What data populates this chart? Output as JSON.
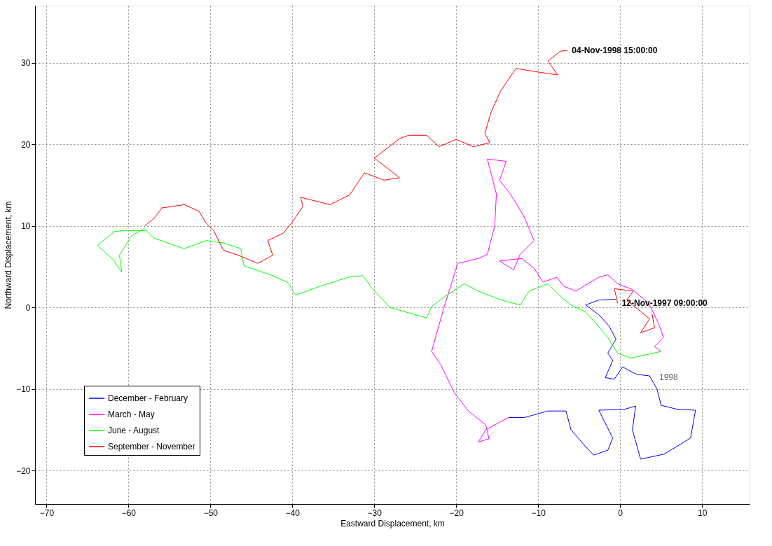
{
  "chart_data": {
    "type": "line",
    "xlabel": "Eastward Displacement, km",
    "ylabel": "Northward Displacement, km",
    "xlim": [
      -71.4,
      15.8
    ],
    "ylim": [
      -24.1,
      37
    ],
    "xticks": [
      -70,
      -60,
      -50,
      -40,
      -30,
      -20,
      -10,
      0,
      10
    ],
    "yticks": [
      -20,
      -10,
      0,
      10,
      20,
      30
    ],
    "grid": true,
    "legend": "bottom left",
    "marker": "none",
    "line_style": "solid",
    "annotations": [
      {
        "text": "04-Nov-1998 15:00:00",
        "x": -6.4,
        "y": 31.5
      },
      {
        "text": "12-Nov-1997 09:00:00",
        "x": -0.3,
        "y": 0.5
      },
      "1998"
    ],
    "series": [
      {
        "name": "December - February",
        "color": "#0000ff",
        "x": [
          -0.5,
          -2.6,
          -4.2,
          -2.6,
          -1.4,
          -0.5,
          -1.5,
          -0.9,
          -1.8,
          -0.7,
          0.3,
          2.0,
          3.6,
          4.5,
          5.0,
          7.0,
          9.2,
          8.6,
          7.0,
          5.3,
          2.5,
          1.5,
          1.9,
          0.5,
          -2.6,
          -0.9,
          -1.5,
          -3.2,
          -4.0,
          -6.0,
          -6.6,
          -8.8,
          -11.7,
          -12.5,
          -13.6
        ],
        "values": [
          1.0,
          0.9,
          0.3,
          -0.9,
          -2.2,
          -3.9,
          -5.6,
          -6.5,
          -8.6,
          -8.8,
          -7.3,
          -8.2,
          -8.4,
          -10.0,
          -12.0,
          -12.5,
          -12.6,
          -16.0,
          -17.0,
          -18.0,
          -18.6,
          -15.0,
          -12.1,
          -12.5,
          -12.6,
          -16.0,
          -17.5,
          -18.1,
          -17.3,
          -15.0,
          -12.7,
          -12.7,
          -13.5,
          -13.5,
          -13.5
        ]
      },
      {
        "name": "March - May",
        "color": "#ff00ff",
        "x": [
          -13.6,
          -16.4,
          -17.3,
          -16.0,
          -16.4,
          -18.5,
          -20.2,
          -21.9,
          -23.0,
          -21.5,
          -19.8,
          -17.3,
          -16.2,
          -15.3,
          -15.1,
          -16.2,
          -13.9,
          -14.7,
          -13.4,
          -11.7,
          -10.5,
          -12.2,
          -13.0,
          -14.7,
          -12.0,
          -10.5,
          -9.4,
          -7.7,
          -6.9,
          -5.4,
          -2.6,
          -1.5,
          -0.3,
          1.5,
          3.5,
          4.7,
          5.3,
          4.2,
          5.0
        ],
        "values": [
          -13.5,
          -15.0,
          -16.5,
          -16.1,
          -14.4,
          -12.7,
          -10.5,
          -7.0,
          -5.4,
          0.0,
          5.4,
          6.0,
          6.5,
          10.0,
          13.9,
          18.2,
          17.9,
          15.6,
          13.9,
          11.1,
          8.2,
          6.5,
          4.6,
          5.7,
          6.0,
          4.8,
          3.1,
          3.7,
          2.6,
          2.0,
          3.7,
          4.0,
          2.9,
          2.2,
          0.5,
          -2.0,
          -3.7,
          -4.8,
          -5.4
        ]
      },
      {
        "name": "June - August",
        "color": "#00ff00",
        "x": [
          5.0,
          1.4,
          -0.3,
          -1.5,
          -2.9,
          -4.3,
          -6.0,
          -7.1,
          -8.8,
          -11.1,
          -12.2,
          -14.5,
          -17.3,
          -19.0,
          -21.3,
          -23.0,
          -23.6,
          -28.1,
          -30.3,
          -31.4,
          -33.2,
          -36.3,
          -39.6,
          -40.5,
          -42.4,
          -45.9,
          -46.3,
          -48.4,
          -50.5,
          -53.2,
          -56.9,
          -57.8,
          -60.8,
          -61.7,
          -63.8,
          -62.0,
          -60.8,
          -61.1,
          -59.6,
          -58.0
        ],
        "values": [
          -5.4,
          -6.2,
          -5.6,
          -3.7,
          -2.0,
          -0.5,
          0.3,
          1.2,
          2.9,
          2.0,
          0.3,
          0.9,
          2.0,
          2.9,
          1.4,
          0.1,
          -1.3,
          0.0,
          2.4,
          3.9,
          3.7,
          2.7,
          1.5,
          3.0,
          3.9,
          5.1,
          7.2,
          7.9,
          8.2,
          7.2,
          8.5,
          9.4,
          9.4,
          9.3,
          7.6,
          6.0,
          4.3,
          6.4,
          8.8,
          9.7
        ]
      },
      {
        "name": "September - November",
        "color": "#ff0000",
        "x": [
          -0.3,
          -0.7,
          1.6,
          0.8,
          2.5,
          3.6,
          2.5,
          4.2,
          3.9,
          null,
          -58.0,
          -56.9,
          -55.9,
          -53.2,
          -51.4,
          -50.5,
          -49.6,
          -48.4,
          -46.6,
          -44.2,
          -42.4,
          -43.0,
          -41.1,
          -39.9,
          -38.7,
          -39.0,
          -35.4,
          -33.0,
          -31.2,
          -28.8,
          -26.9,
          -30.0,
          -26.9,
          -25.8,
          -23.6,
          -22.1,
          -20.0,
          -17.9,
          -15.9,
          -16.5,
          -15.8,
          -14.6,
          -12.7,
          -10.3,
          -7.6,
          -8.8,
          -7.3,
          -6.4
        ],
        "values": [
          0.5,
          2.3,
          2.0,
          0.9,
          -0.5,
          -1.4,
          -3.1,
          -2.5,
          -0.8,
          null,
          10.0,
          10.9,
          12.2,
          12.6,
          11.8,
          10.3,
          9.4,
          7.0,
          6.4,
          5.4,
          6.4,
          8.2,
          9.1,
          10.6,
          12.4,
          13.5,
          12.6,
          13.8,
          16.5,
          15.6,
          15.9,
          18.3,
          20.7,
          21.1,
          21.1,
          19.7,
          20.6,
          19.7,
          20.2,
          21.3,
          23.8,
          26.5,
          29.3,
          28.9,
          28.5,
          30.2,
          31.4,
          31.5
        ]
      }
    ]
  }
}
